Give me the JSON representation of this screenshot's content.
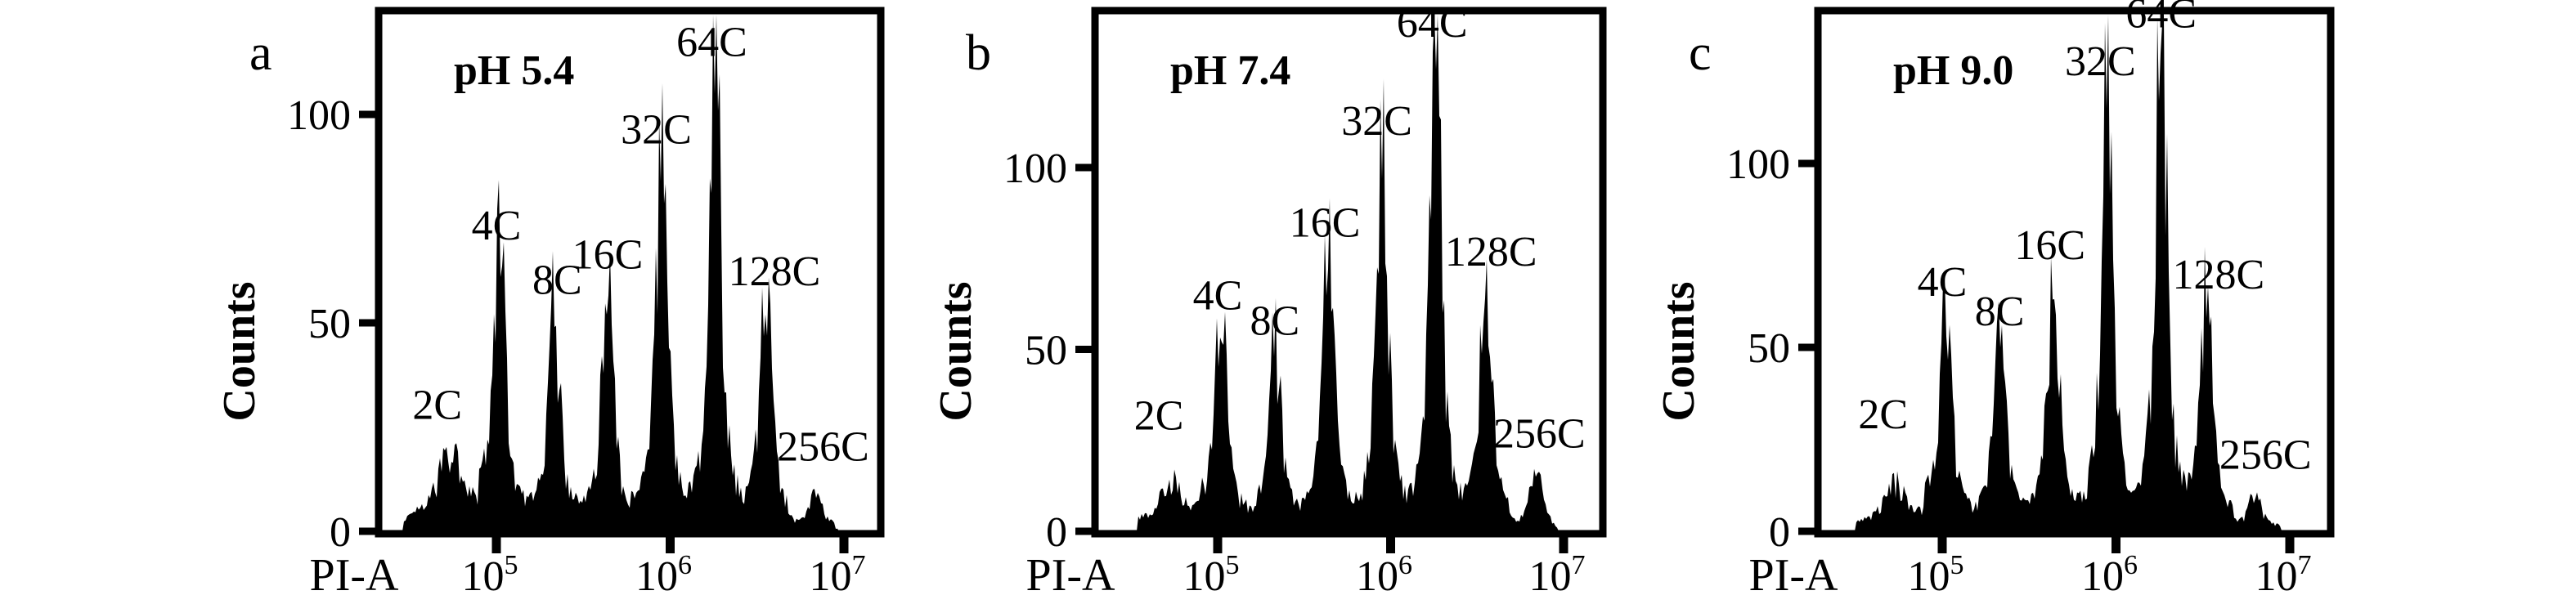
{
  "figure": {
    "background": "#ffffff",
    "description": "Three flow-cytometry DNA-content histograms (Counts vs PI-A, log scale) at three pH values, peaks labeled by ploidy 2C-256C"
  },
  "chart_data": {
    "type": "area",
    "subtype": "flow-cytometry-histogram",
    "xlabel": "PI-A",
    "ylabel": "Counts",
    "x_scale": "log10",
    "grid": false,
    "x_ticks": [
      {
        "base": "10",
        "exp": "5"
      },
      {
        "base": "10",
        "exp": "6"
      },
      {
        "base": "10",
        "exp": "7"
      }
    ],
    "y_ticks": [
      0,
      50,
      100
    ],
    "colors": {
      "histogram_fill": "#000000",
      "axis": "#000000",
      "annotation_red": "#c00000"
    },
    "panels": [
      {
        "letter": "a",
        "condition": "pH 5.4",
        "ylim": [
          0,
          125
        ],
        "peaks": [
          {
            "label": "2C",
            "x_log10": 4.73,
            "counts": 14,
            "label_x_log10": 4.66,
            "label_counts": 27
          },
          {
            "label": "4C",
            "x_log10": 5.02,
            "counts": 61,
            "label_x_log10": 5.0,
            "label_counts": 70
          },
          {
            "label": "8C",
            "x_log10": 5.33,
            "counts": 49,
            "label_x_log10": 5.35,
            "label_counts": 57
          },
          {
            "label": "16C",
            "x_log10": 5.64,
            "counts": 52,
            "label_x_log10": 5.64,
            "label_counts": 63
          },
          {
            "label": "32C",
            "x_log10": 5.95,
            "counts": 84,
            "label_x_log10": 5.92,
            "label_counts": 93
          },
          {
            "label": "64C",
            "x_log10": 6.26,
            "counts": 105,
            "label_x_log10": 6.24,
            "label_counts": 114
          },
          {
            "label": "128C",
            "x_log10": 6.55,
            "counts": 52,
            "label_x_log10": 6.6,
            "label_counts": 59
          },
          {
            "label": "256C",
            "x_log10": 6.84,
            "counts": 8,
            "label_x_log10": 6.88,
            "label_counts": 17
          }
        ]
      },
      {
        "letter": "b",
        "condition": "pH 7.4",
        "ylim": [
          0,
          143
        ],
        "peaks": [
          {
            "label": "2C",
            "x_log10": 4.73,
            "counts": 10,
            "label_x_log10": 4.66,
            "label_counts": 28
          },
          {
            "label": "4C",
            "x_log10": 5.02,
            "counts": 52,
            "label_x_log10": 5.0,
            "label_counts": 61
          },
          {
            "label": "8C",
            "x_log10": 5.33,
            "counts": 48,
            "label_x_log10": 5.33,
            "label_counts": 54
          },
          {
            "label": "16C",
            "x_log10": 5.64,
            "counts": 72,
            "label_x_log10": 5.62,
            "label_counts": 81
          },
          {
            "label": "32C",
            "x_log10": 5.95,
            "counts": 97,
            "label_x_log10": 5.92,
            "label_counts": 109
          },
          {
            "label": "64C",
            "x_log10": 6.26,
            "counts": 127,
            "label_x_log10": 6.24,
            "label_counts": 136
          },
          {
            "label": "128C",
            "x_log10": 6.55,
            "counts": 64,
            "label_x_log10": 6.58,
            "label_counts": 73
          },
          {
            "label": "256C",
            "x_log10": 6.84,
            "counts": 15,
            "label_x_log10": 6.86,
            "label_counts": 23
          }
        ]
      },
      {
        "letter": "c",
        "condition": "pH 9.0",
        "ylim": [
          0,
          142
        ],
        "peaks": [
          {
            "label": "2C",
            "x_log10": 4.73,
            "counts": 9,
            "label_x_log10": 4.66,
            "label_counts": 28
          },
          {
            "label": "4C",
            "x_log10": 5.02,
            "counts": 53,
            "label_x_log10": 5.0,
            "label_counts": 64
          },
          {
            "label": "8C",
            "x_log10": 5.33,
            "counts": 50,
            "label_x_log10": 5.33,
            "label_counts": 56
          },
          {
            "label": "16C",
            "x_log10": 5.64,
            "counts": 63,
            "label_x_log10": 5.62,
            "label_counts": 74
          },
          {
            "label": "32C",
            "x_log10": 5.95,
            "counts": 115,
            "label_x_log10": 5.91,
            "label_counts": 124
          },
          {
            "label": "64C",
            "x_log10": 6.26,
            "counts": 130,
            "label_x_log10": 6.26,
            "label_counts": 137
          },
          {
            "label": "128C",
            "x_log10": 6.52,
            "counts": 58,
            "label_x_log10": 6.59,
            "label_counts": 66
          },
          {
            "label": "256C",
            "x_log10": 6.8,
            "counts": 9,
            "label_x_log10": 6.86,
            "label_counts": 17
          }
        ]
      }
    ]
  }
}
